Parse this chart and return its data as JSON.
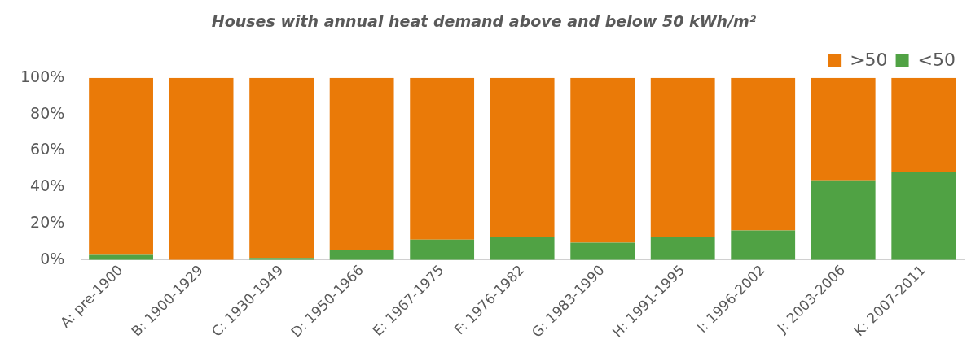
{
  "chart_data": {
    "type": "bar",
    "title": "Houses with annual heat demand above and below 50 kWh/m²",
    "stacked": true,
    "legend": "top right",
    "grid": false,
    "categories": [
      "A: pre-1900",
      "B: 1900-1929",
      "C: 1930-1949",
      "D: 1950-1966",
      "E: 1967-1975",
      "F: 1976-1982",
      "G: 1983-1990",
      "H: 1991-1995",
      "I: 1996-2002",
      "J: 2003-2006",
      "K: 2007-2011"
    ],
    "series": [
      {
        "name": "<50",
        "color": "#50a244",
        "values": [
          2.8,
          0,
          1.2,
          5.3,
          11.2,
          12.8,
          9.5,
          12.8,
          16.2,
          43.8,
          48.3
        ]
      },
      {
        "name": ">50",
        "color": "#ea7a08",
        "values": [
          97.2,
          100,
          98.8,
          94.7,
          88.8,
          87.2,
          90.5,
          87.2,
          83.8,
          56.2,
          51.7
        ]
      }
    ],
    "ylim": [
      0,
      100
    ],
    "yticks": [
      {
        "value": 0,
        "label": "0%"
      },
      {
        "value": 20,
        "label": "20%"
      },
      {
        "value": 40,
        "label": "40%"
      },
      {
        "value": 60,
        "label": "60%"
      },
      {
        "value": 80,
        "label": "80%"
      },
      {
        "value": 100,
        "label": "100%"
      }
    ]
  }
}
